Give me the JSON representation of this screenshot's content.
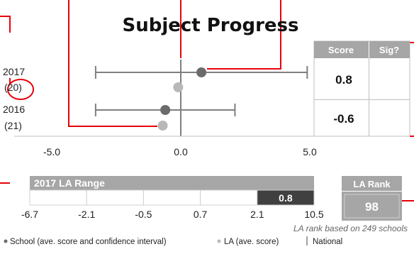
{
  "title": "Subject Progress",
  "chart_data": {
    "type": "scatter",
    "xlim": [
      -5.0,
      5.0
    ],
    "x_ticks": [
      "-5.0",
      "0.0",
      "5.0"
    ],
    "x_tick_values": [
      -5,
      0,
      5
    ],
    "rows": [
      {
        "year": "2017",
        "count": "(20)",
        "school": 0.8,
        "ci": [
          -3.3,
          4.9
        ],
        "la": -0.1
      },
      {
        "year": "2016",
        "count": "(21)",
        "school": -0.6,
        "ci": [
          -3.3,
          2.1
        ],
        "la": -0.7
      }
    ],
    "national": 0.0
  },
  "table": {
    "headers": [
      "Score",
      "Sig?"
    ],
    "rows": [
      {
        "score": "0.8",
        "sig": ""
      },
      {
        "score": "-0.6",
        "sig": ""
      }
    ]
  },
  "la_range": {
    "title": "2017 LA Range",
    "ticks": [
      "-6.7",
      "-2.1",
      "-0.5",
      "0.7",
      "2.1",
      "10.5"
    ],
    "value_label": "0.8",
    "highlight_index": 4
  },
  "la_rank": {
    "title": "LA Rank",
    "value": "98",
    "note": "LA rank based on 249 schools"
  },
  "legend": {
    "school": "School (ave. score and confidence interval)",
    "la": "LA (ave. score)",
    "national": "National"
  },
  "colors": {
    "callout": "#e8000b",
    "school_marker": "#6b6b6b",
    "la_marker": "#b8b8b8",
    "header_bg": "#a6a6a6",
    "band_dark": "#404040",
    "axis": "#7f7f7f"
  }
}
